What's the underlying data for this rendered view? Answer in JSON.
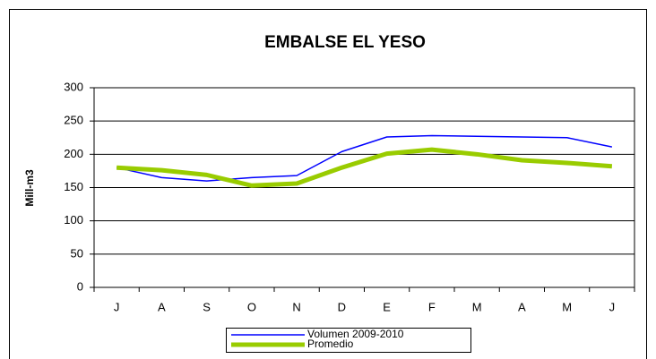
{
  "chart_data": {
    "type": "line",
    "title": "EMBALSE EL YESO",
    "y_label": "Mill-m3",
    "categories": [
      "J",
      "A",
      "S",
      "O",
      "N",
      "D",
      "E",
      "F",
      "M",
      "A",
      "M",
      "J"
    ],
    "series": [
      {
        "name": "Volumen  2009-2010",
        "color": "#0000ff",
        "width": 1.5,
        "values": [
          180,
          165,
          160,
          165,
          168,
          204,
          226,
          228,
          227,
          226,
          225,
          211
        ]
      },
      {
        "name": "Promedio",
        "color": "#99cc00",
        "width": 5,
        "values": [
          180,
          176,
          169,
          153,
          156,
          180,
          201,
          207,
          200,
          191,
          187,
          182
        ]
      }
    ],
    "ylim": [
      0,
      300
    ],
    "yticks": [
      0,
      50,
      100,
      150,
      200,
      250,
      300
    ],
    "grid": true
  }
}
